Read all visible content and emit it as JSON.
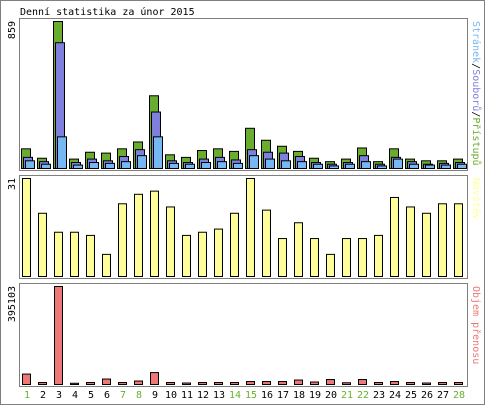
{
  "title": "Denní statistika za únor 2015",
  "colors": {
    "background": "#ffffff",
    "border": "#7f7f7f",
    "text": "#000000",
    "weekend": "#66b22b",
    "hits": "#6aac2e",
    "files": "#7f7fde",
    "pages": "#75b8f2",
    "visits": "#ffff99",
    "traffic": "#ee7777"
  },
  "chart_data": {
    "type": "bar",
    "title": "Denní statistika za únor 2015",
    "categories": [
      "1",
      "2",
      "3",
      "4",
      "5",
      "6",
      "7",
      "8",
      "9",
      "10",
      "11",
      "12",
      "13",
      "14",
      "15",
      "16",
      "17",
      "18",
      "19",
      "20",
      "21",
      "22",
      "23",
      "24",
      "25",
      "26",
      "27",
      "28"
    ],
    "weekend_days": [
      "1",
      "7",
      "8",
      "14",
      "15",
      "21",
      "22",
      "28"
    ],
    "panels": [
      {
        "id": "requests",
        "ymax_label": "859",
        "ylim": [
          0,
          859
        ],
        "legend": [
          {
            "text": "Stránek",
            "color": "#75b8f2"
          },
          {
            "text": "/",
            "color": "#000000"
          },
          {
            "text": "Souborů",
            "color": "#7f7fde"
          },
          {
            "text": "/",
            "color": "#000000"
          },
          {
            "text": "Přístupů",
            "color": "#6aac2e"
          }
        ],
        "series": [
          {
            "name": "Přístupů",
            "values": [
              115,
              60,
              859,
              55,
              95,
              90,
              115,
              155,
              425,
              80,
              65,
              105,
              115,
              100,
              235,
              165,
              130,
              100,
              60,
              40,
              55,
              120,
              40,
              115,
              55,
              45,
              45,
              55
            ]
          },
          {
            "name": "Souborů",
            "values": [
              65,
              40,
              735,
              35,
              55,
              45,
              70,
              110,
              330,
              45,
              35,
              55,
              65,
              50,
              110,
              95,
              90,
              70,
              35,
              25,
              35,
              75,
              25,
              65,
              40,
              25,
              30,
              35
            ]
          },
          {
            "name": "Stránek",
            "values": [
              45,
              25,
              185,
              20,
              35,
              30,
              40,
              75,
              185,
              30,
              25,
              35,
              40,
              30,
              75,
              55,
              45,
              40,
              25,
              15,
              25,
              40,
              15,
              55,
              25,
              20,
              20,
              25
            ]
          }
        ]
      },
      {
        "id": "visits",
        "ymax_label": "31",
        "ylim": [
          0,
          31
        ],
        "legend": [
          {
            "text": "Návštěv",
            "color": "#ffff99"
          }
        ],
        "series": [
          {
            "name": "Návštěv",
            "values": [
              31,
              20,
              14,
              14,
              13,
              7,
              23,
              26,
              27,
              22,
              13,
              14,
              15,
              20,
              31,
              21,
              12,
              17,
              12,
              7,
              12,
              12,
              13,
              25,
              22,
              20,
              23,
              23
            ]
          }
        ]
      },
      {
        "id": "traffic",
        "ymax_label": "395103",
        "ylim": [
          0,
          395103
        ],
        "legend": [
          {
            "text": "Objem přenosu",
            "color": "#ee7777"
          }
        ],
        "series": [
          {
            "name": "Objem přenosu",
            "values": [
              42000,
              8000,
              395103,
              5000,
              8000,
              22000,
              8000,
              14000,
              48000,
              8000,
              6000,
              8000,
              8000,
              8000,
              12000,
              12000,
              12000,
              18000,
              10000,
              20000,
              7000,
              20000,
              8000,
              12000,
              8000,
              6000,
              8000,
              8000
            ]
          }
        ]
      }
    ]
  }
}
